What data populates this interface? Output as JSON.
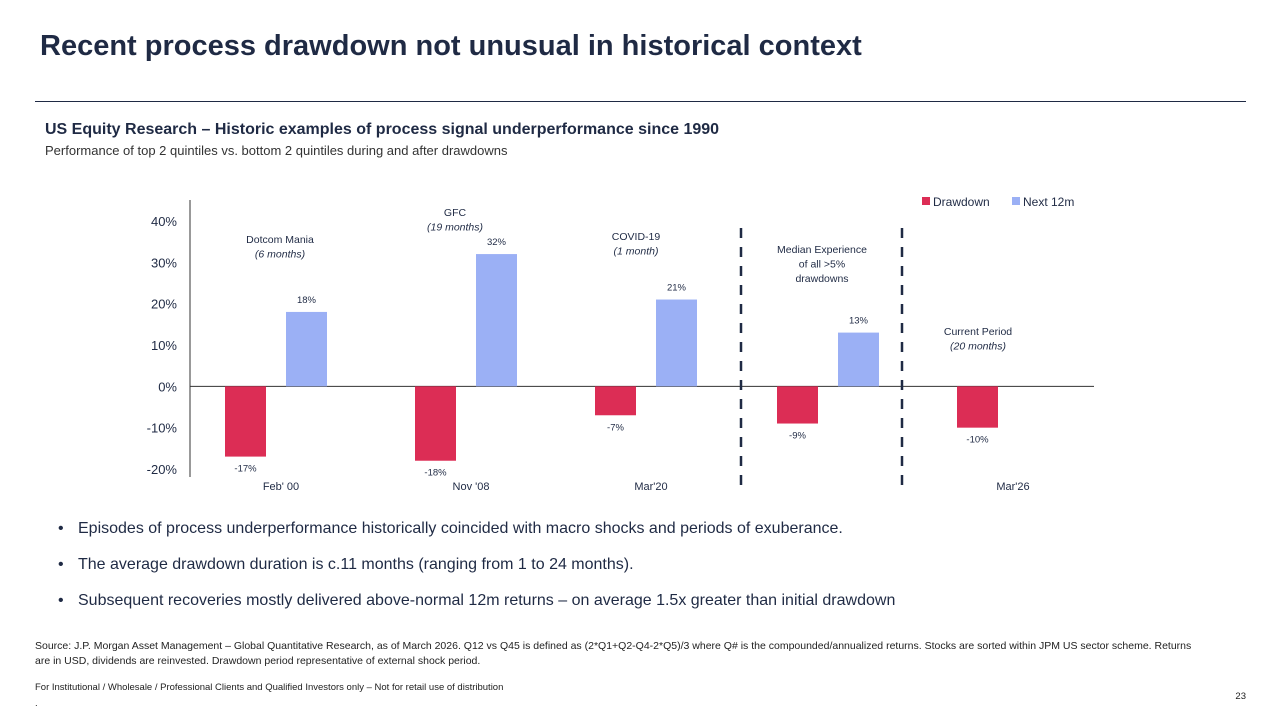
{
  "page": {
    "title": "Recent process drawdown not unusual in historical context",
    "page_number": "23"
  },
  "chart_header": {
    "title": "US Equity Research – Historic examples of process signal underperformance since 1990",
    "subtitle": "Performance of top 2 quintiles vs. bottom 2 quintiles during and after drawdowns"
  },
  "colors": {
    "drawdown": "#dc2d55",
    "next12m": "#9bb0f5",
    "text": "#1f2a44"
  },
  "chart_data": {
    "type": "bar",
    "categories": [
      "Feb' 00",
      "Nov '08",
      "Mar'20",
      "",
      "Mar'26"
    ],
    "series": [
      {
        "name": "Drawdown",
        "values": [
          -17,
          -18,
          -7,
          -9,
          -10
        ],
        "labels": [
          "-17%",
          "-18%",
          "-7%",
          "-9%",
          "-10%"
        ]
      },
      {
        "name": "Next 12m",
        "values": [
          18,
          32,
          21,
          13,
          null
        ],
        "labels": [
          "18%",
          "32%",
          "21%",
          "13%",
          ""
        ]
      }
    ],
    "ylim": [
      -20,
      40
    ],
    "yticks": [
      40,
      30,
      20,
      10,
      0,
      -10,
      -20
    ],
    "ytick_labels": [
      "40%",
      "30%",
      "20%",
      "10%",
      "0%",
      "-10%",
      "-20%"
    ],
    "legend_position": "top-right",
    "annotations": [
      {
        "group": 0,
        "lines": [
          "Dotcom Mania"
        ],
        "italic": "(6 months)"
      },
      {
        "group": 1,
        "lines": [
          "GFC"
        ],
        "italic": "(19 months)"
      },
      {
        "group": 2,
        "lines": [
          "COVID-19"
        ],
        "italic": "(1 month)"
      },
      {
        "group": 3,
        "lines": [
          "Median Experience",
          "of all >5%",
          "drawdowns"
        ],
        "italic": ""
      },
      {
        "group": 4,
        "lines": [
          "Current Period"
        ],
        "italic": "(20 months)"
      }
    ]
  },
  "bullets": [
    "Episodes of process underperformance historically coincided with macro shocks and periods of exuberance.",
    "The average drawdown duration is c.11 months (ranging from 1 to 24 months).",
    "Subsequent recoveries mostly delivered above-normal 12m returns – on average 1.5x greater than initial drawdown"
  ],
  "footer": {
    "source": "Source: J.P. Morgan Asset Management – Global Quantitative Research, as of March 2026. Q12 vs Q45 is defined as (2*Q1+Q2-Q4-2*Q5)/3 where Q# is the compounded/annualized returns. Stocks are sorted within JPM US sector scheme. Returns are in USD, dividends are reinvested. Drawdown period representative of external shock period.",
    "disclaimer": "For Institutional / Wholesale / Professional Clients and Qualified Investors only – Not for retail use of distribution",
    "dot": "."
  }
}
